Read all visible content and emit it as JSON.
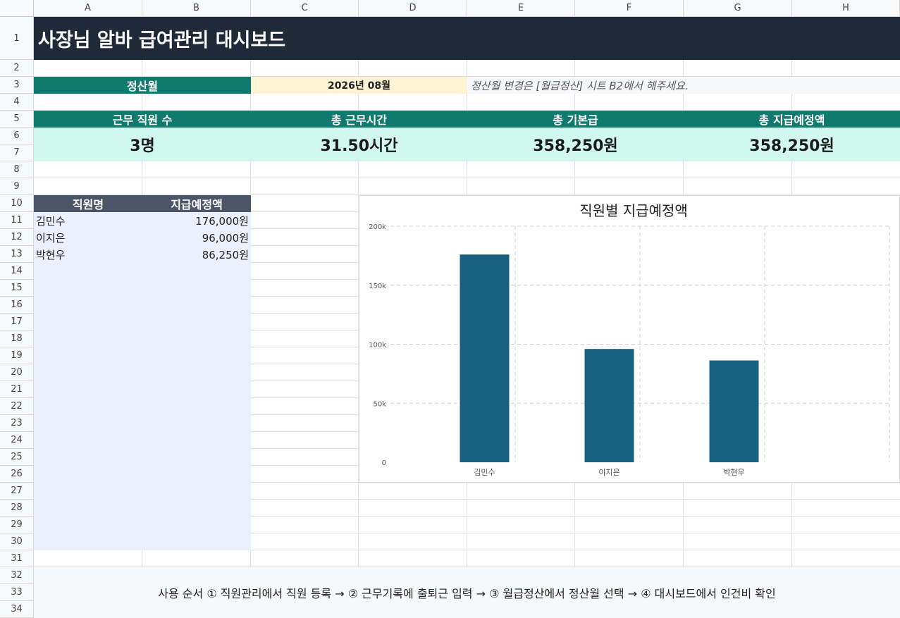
{
  "columns": [
    "A",
    "B",
    "C",
    "D",
    "E",
    "F",
    "G",
    "H"
  ],
  "rows": [
    "1",
    "2",
    "3",
    "4",
    "5",
    "6",
    "7",
    "8",
    "9",
    "10",
    "11",
    "12",
    "13",
    "14",
    "15",
    "16",
    "17",
    "18",
    "19",
    "20",
    "21",
    "22",
    "23",
    "24",
    "25",
    "26",
    "27",
    "28",
    "29",
    "30",
    "31",
    "32",
    "33",
    "34"
  ],
  "title": "사장님 알바 급여관리 대시보드",
  "period": {
    "label": "정산월",
    "value": "2026년 08월",
    "note": "정산월 변경은 [월급정산] 시트 B2에서 해주세요."
  },
  "kpis": [
    {
      "label": "근무 직원 수",
      "value": "3명"
    },
    {
      "label": "총 근무시간",
      "value": "31.50시간"
    },
    {
      "label": "총 기본급",
      "value": "358,250원"
    },
    {
      "label": "총 지급예정액",
      "value": "358,250원"
    }
  ],
  "employee_table": {
    "headers": [
      "직원명",
      "지급예정액"
    ],
    "rows": [
      {
        "name": "김민수",
        "pay": "176,000원"
      },
      {
        "name": "이지은",
        "pay": "96,000원"
      },
      {
        "name": "박현우",
        "pay": "86,250원"
      }
    ]
  },
  "chart_data": {
    "type": "bar",
    "title": "직원별 지급예정액",
    "categories": [
      "김민수",
      "이지은",
      "박현우"
    ],
    "values": [
      176000,
      96000,
      86250
    ],
    "ylim": [
      0,
      200000
    ],
    "yticks": [
      0,
      50000,
      100000,
      150000,
      200000
    ],
    "ytick_labels": [
      "0",
      "50k",
      "100k",
      "150k",
      "200k"
    ],
    "grid": true,
    "bar_color": "#17607f",
    "legend": "none"
  },
  "footer": "사용 순서  ① 직원관리에서 직원 등록  →  ② 근무기록에 출퇴근 입력  →  ③ 월급정산에서 정산월 선택  →  ④ 대시보드에서 인건비 확인",
  "colors": {
    "title_bg": "#1e2a38",
    "teal": "#117a6e",
    "mint": "#d1f8ee",
    "month_bg": "#fdf4d3",
    "table_head": "#4a5668",
    "table_body": "#ebf0fd"
  }
}
